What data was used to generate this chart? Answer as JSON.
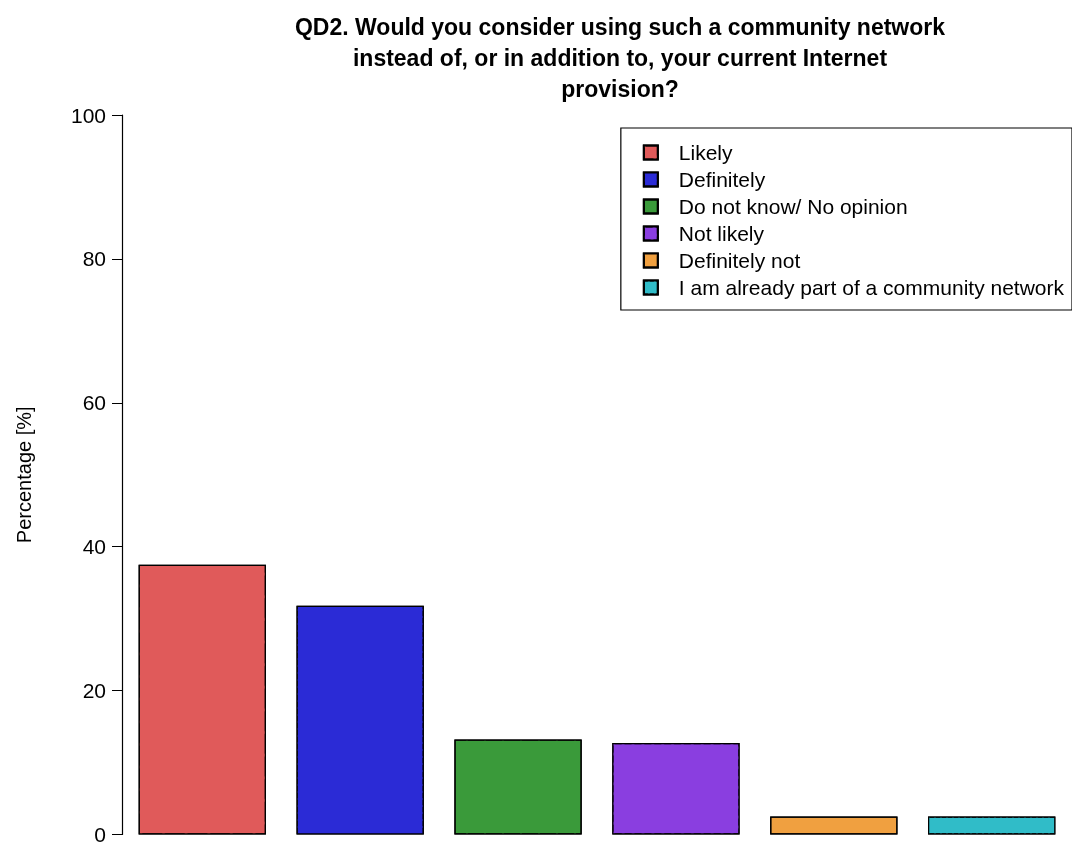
{
  "chart_data": {
    "type": "bar",
    "title": "QD2. Would you consider using such a community network\ninstead of, or in addition to, your current Internet\nprovision?",
    "ylabel": "Percentage [%]",
    "categories": [
      null
    ],
    "series": [
      {
        "name": "Likely",
        "color": "#e05a5a",
        "values": [
          37.5
        ]
      },
      {
        "name": "Definitely",
        "color": "#2b2bd6",
        "values": [
          31.8
        ]
      },
      {
        "name": "Do not know/ No opinion",
        "color": "#3a9a3a",
        "values": [
          13.2
        ]
      },
      {
        "name": "Not likely",
        "color": "#8a3ee0",
        "values": [
          12.7
        ]
      },
      {
        "name": "Definitely not",
        "color": "#f0a040",
        "values": [
          2.5
        ]
      },
      {
        "name": "I am already part of a community network",
        "color": "#30bcc8",
        "values": [
          2.5
        ]
      }
    ],
    "ylim": [
      0,
      100
    ],
    "yticks": [
      0,
      20,
      40,
      60,
      80,
      100
    ],
    "grid": false,
    "legend": "top right"
  }
}
